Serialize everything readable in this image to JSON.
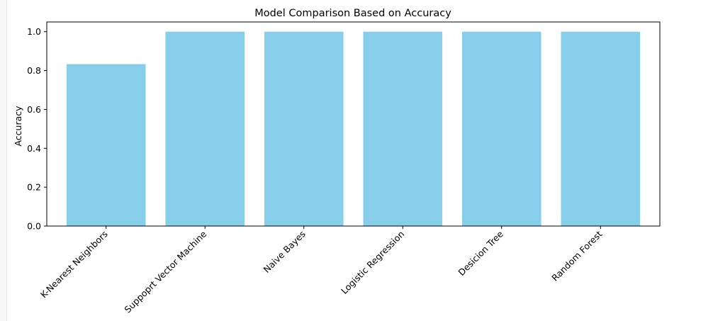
{
  "chart_data": {
    "type": "bar",
    "title": "Model Comparison Based on Accuracy",
    "xlabel": "",
    "ylabel": "Accuracy",
    "categories": [
      "K-Nearest Neighbors",
      "Suppoprt Vector Machine",
      "Naive Bayes",
      "Logistic Regression",
      "Desicion Tree",
      "Random Forest"
    ],
    "values": [
      0.833,
      1.0,
      1.0,
      1.0,
      1.0,
      1.0
    ],
    "ylim": [
      0,
      1.05
    ],
    "yticks": [
      0.0,
      0.2,
      0.4,
      0.6,
      0.8,
      1.0
    ],
    "ytick_labels": [
      "0.0",
      "0.2",
      "0.4",
      "0.6",
      "0.8",
      "1.0"
    ],
    "x_tick_rotation": 45,
    "grid": false,
    "bar_color": "#87ceeb"
  }
}
